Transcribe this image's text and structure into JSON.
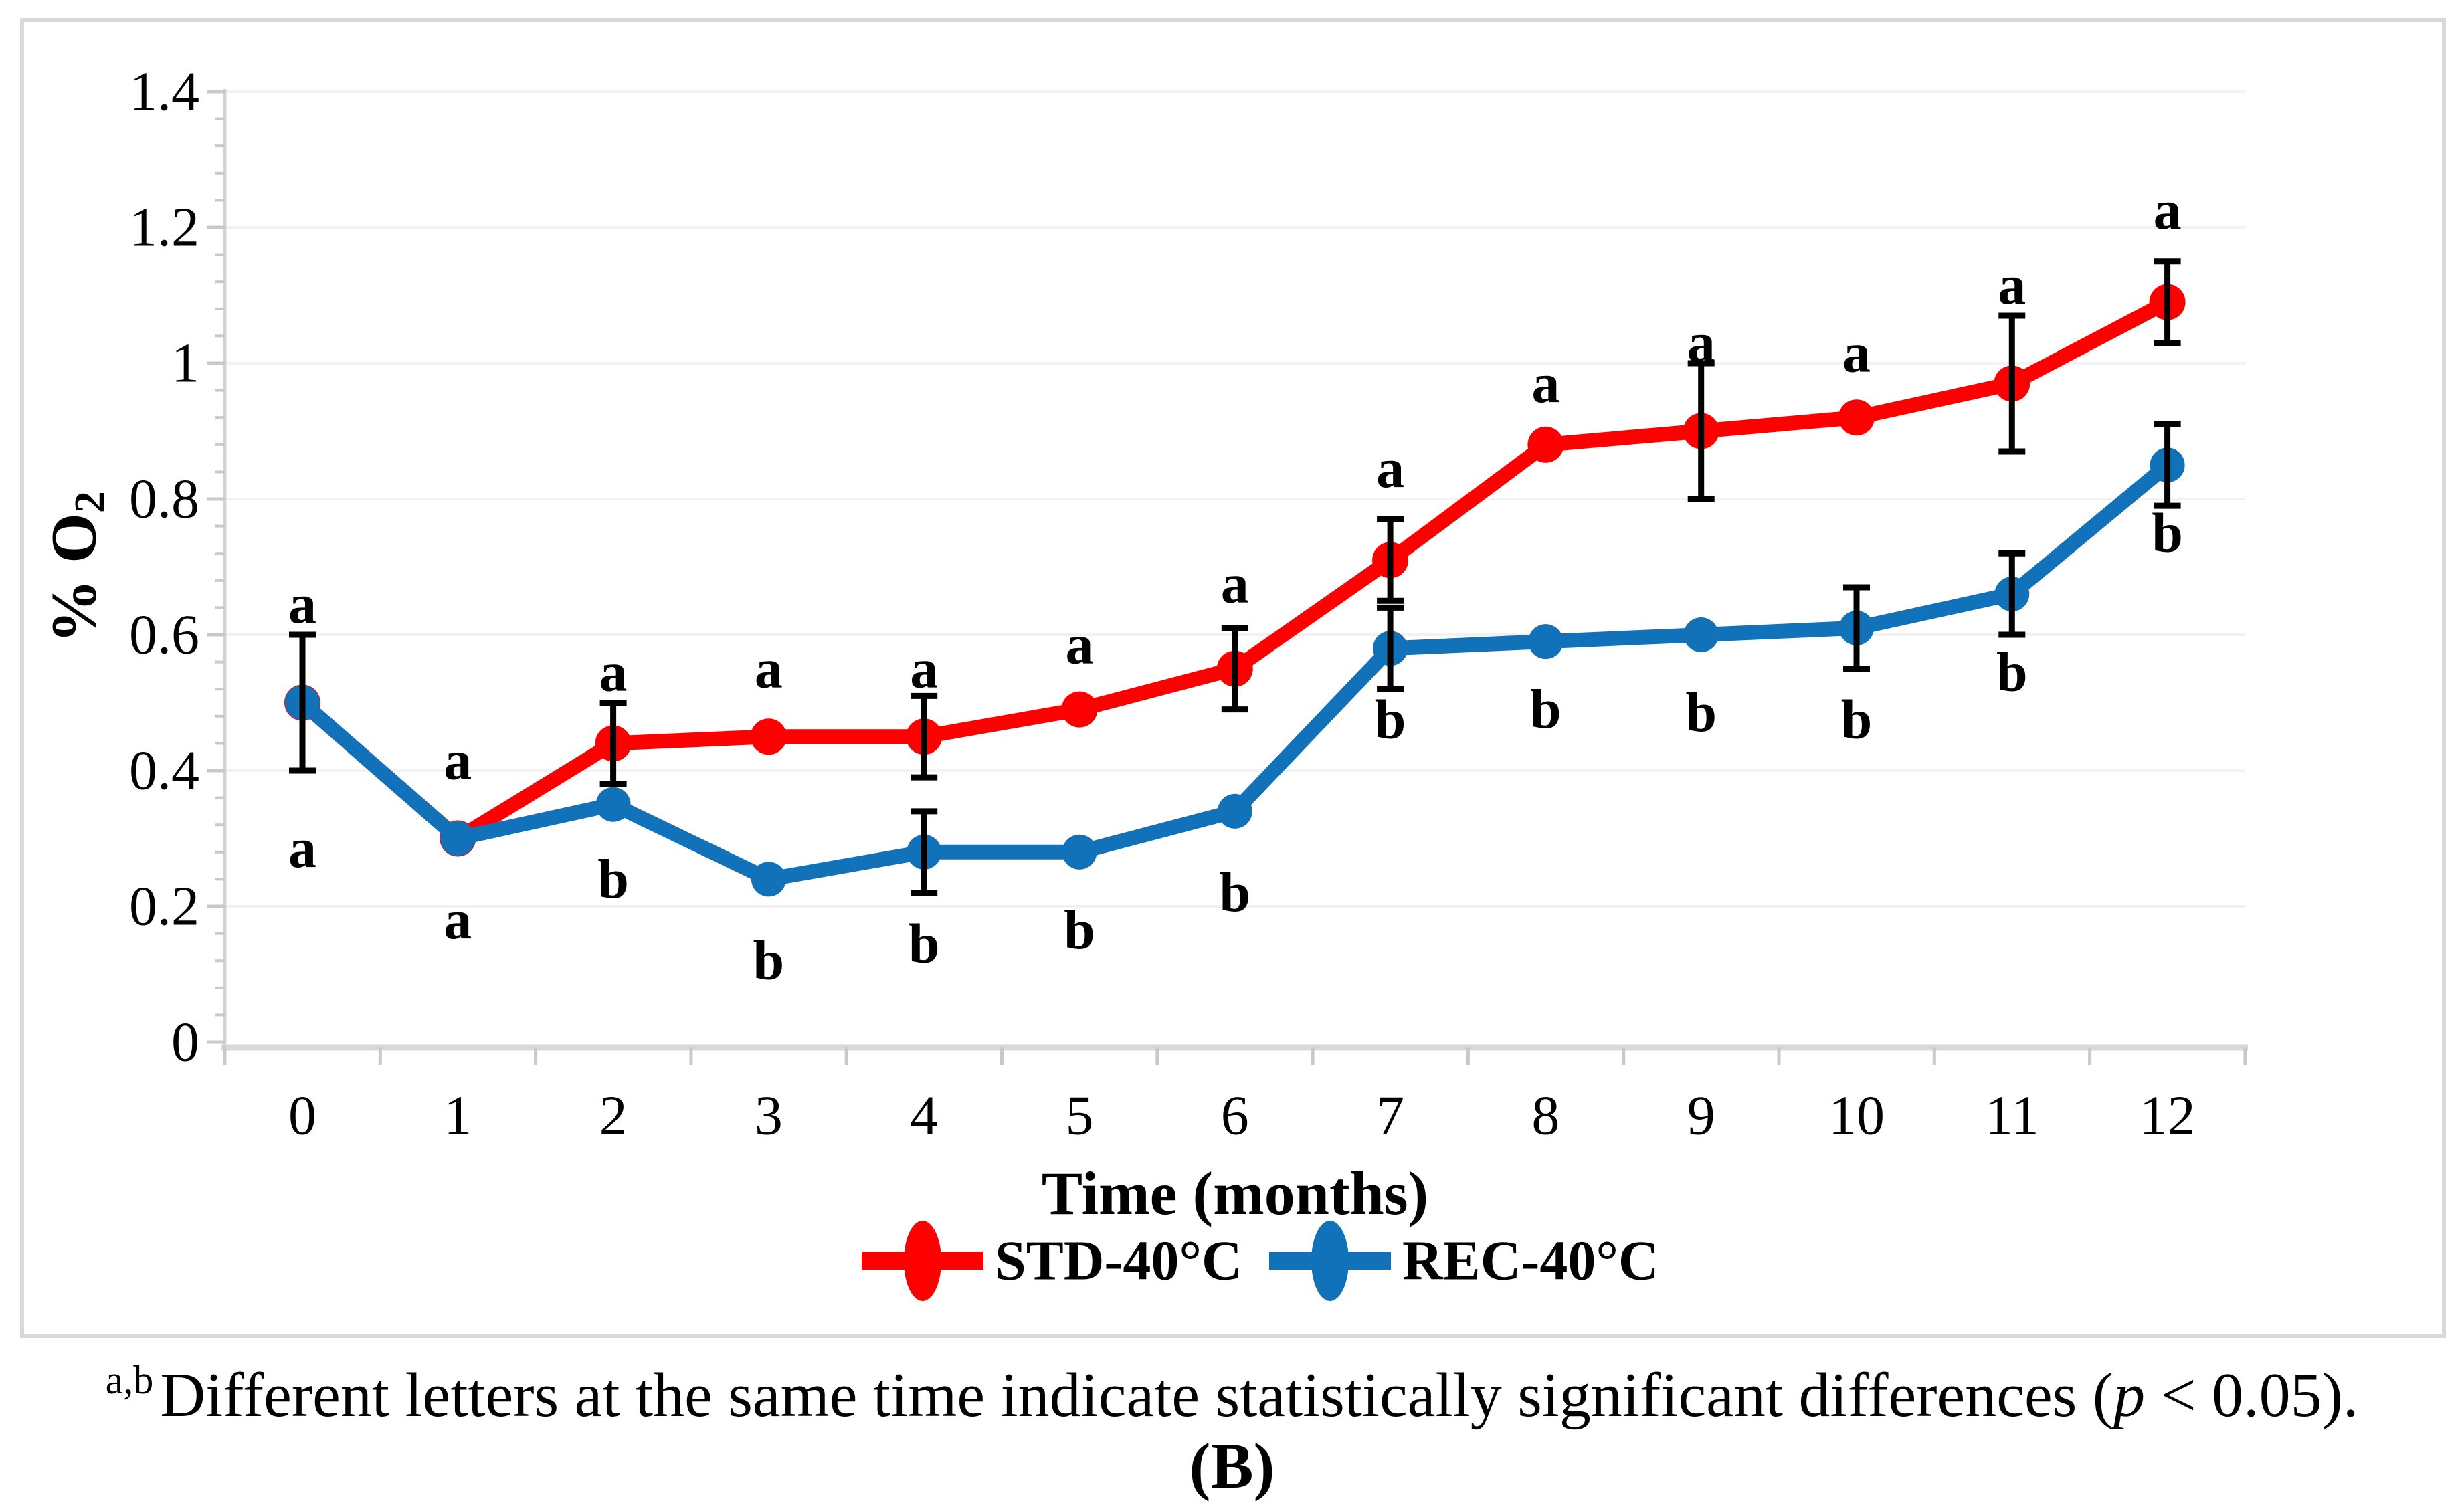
{
  "figure": {
    "panel_label": "(B)",
    "caption": {
      "superscript": "a,b",
      "text_before_p": "Different letters at the same time indicate statistically significant differences (",
      "p_italic": "p",
      "text_after_p": " < 0.05)."
    }
  },
  "chart_data": {
    "type": "line",
    "title": "",
    "xlabel": "Time (months)",
    "ylabel": {
      "main": "% O",
      "sub": "2"
    },
    "x": [
      0,
      1,
      2,
      3,
      4,
      5,
      6,
      7,
      8,
      9,
      10,
      11,
      12
    ],
    "ylim": [
      0,
      1.4
    ],
    "ytick_values": [
      0,
      0.2,
      0.4,
      0.6,
      0.8,
      1,
      1.2,
      1.4
    ],
    "ytick_labels": [
      "0",
      "0.2",
      "0.4",
      "0.6",
      "0.8",
      "1",
      "1.2",
      "1.4"
    ],
    "y_minor_unit": 0.04,
    "grid": "horizontal-major",
    "legend_position": "bottom-center",
    "series": [
      {
        "name": "STD-40°C",
        "color": "#FF0000",
        "marker": "circle",
        "values": [
          0.5,
          0.3,
          0.44,
          0.45,
          0.45,
          0.49,
          0.55,
          0.71,
          0.88,
          0.9,
          0.92,
          0.97,
          1.09
        ],
        "errors": [
          0,
          0,
          0.06,
          0,
          0.06,
          0,
          0.06,
          0.06,
          0,
          0.1,
          0,
          0.1,
          0.06
        ]
      },
      {
        "name": "REC-40°C",
        "color": "#1172BA",
        "marker": "circle",
        "values": [
          0.5,
          0.3,
          0.35,
          0.24,
          0.28,
          0.28,
          0.34,
          0.58,
          0.59,
          0.6,
          0.61,
          0.66,
          0.85
        ],
        "errors": [
          0.1,
          0,
          0,
          0,
          0.06,
          0,
          0,
          0.06,
          0,
          0,
          0.06,
          0.06,
          0.06
        ]
      }
    ],
    "sig_letters": {
      "above": {
        "series": "STD-40°C",
        "letters": [
          "a",
          "a",
          "a",
          "a",
          "a",
          "a",
          "a",
          "a",
          "a",
          "a",
          "a",
          "a",
          "a"
        ],
        "y": [
          0.645,
          0.415,
          0.545,
          0.55,
          0.55,
          0.585,
          0.675,
          0.845,
          0.97,
          1.03,
          1.015,
          1.115,
          1.225
        ]
      },
      "below": {
        "series": "REC-40°C",
        "letters": [
          "a",
          "a",
          "b",
          "b",
          "b",
          "b",
          "b",
          "b",
          "b",
          "b",
          "b",
          "b",
          "b"
        ],
        "y": [
          0.285,
          0.18,
          0.24,
          0.12,
          0.145,
          0.165,
          0.22,
          0.475,
          0.49,
          0.485,
          0.475,
          0.545,
          0.75
        ]
      }
    }
  }
}
